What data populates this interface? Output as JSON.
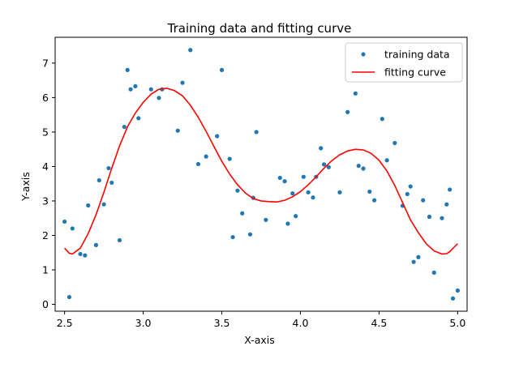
{
  "chart_data": {
    "type": "scatter",
    "title": "Training data and fitting curve",
    "xlabel": "X-axis",
    "ylabel": "Y-axis",
    "xlim": [
      2.44,
      5.06
    ],
    "ylim": [
      -0.2,
      7.75
    ],
    "xticks": [
      2.5,
      3.0,
      3.5,
      4.0,
      4.5,
      5.0
    ],
    "xtick_labels": [
      "2.5",
      "3.0",
      "3.5",
      "4.0",
      "4.5",
      "5.0"
    ],
    "yticks": [
      0,
      1,
      2,
      3,
      4,
      5,
      6,
      7
    ],
    "ytick_labels": [
      "0",
      "1",
      "2",
      "3",
      "4",
      "5",
      "6",
      "7"
    ],
    "grid": false,
    "legend_position": "top-right",
    "series": [
      {
        "name": "training data",
        "kind": "scatter",
        "color": "#1f77b4",
        "points": [
          [
            2.5,
            2.4
          ],
          [
            2.53,
            0.21
          ],
          [
            2.55,
            2.2
          ],
          [
            2.6,
            1.46
          ],
          [
            2.63,
            1.42
          ],
          [
            2.65,
            2.87
          ],
          [
            2.7,
            1.72
          ],
          [
            2.72,
            3.6
          ],
          [
            2.75,
            2.9
          ],
          [
            2.78,
            3.95
          ],
          [
            2.8,
            3.53
          ],
          [
            2.85,
            1.86
          ],
          [
            2.88,
            5.15
          ],
          [
            2.9,
            6.8
          ],
          [
            2.92,
            6.24
          ],
          [
            2.95,
            6.33
          ],
          [
            2.97,
            5.4
          ],
          [
            3.05,
            6.24
          ],
          [
            3.1,
            5.99
          ],
          [
            3.12,
            6.24
          ],
          [
            3.22,
            5.04
          ],
          [
            3.25,
            6.43
          ],
          [
            3.3,
            7.38
          ],
          [
            3.35,
            4.07
          ],
          [
            3.4,
            4.29
          ],
          [
            3.47,
            4.88
          ],
          [
            3.5,
            6.8
          ],
          [
            3.55,
            4.22
          ],
          [
            3.57,
            1.95
          ],
          [
            3.6,
            3.3
          ],
          [
            3.63,
            2.64
          ],
          [
            3.68,
            2.03
          ],
          [
            3.7,
            3.09
          ],
          [
            3.72,
            5.0
          ],
          [
            3.78,
            2.45
          ],
          [
            3.87,
            3.67
          ],
          [
            3.9,
            3.57
          ],
          [
            3.92,
            2.34
          ],
          [
            3.95,
            3.22
          ],
          [
            3.97,
            2.56
          ],
          [
            4.02,
            3.7
          ],
          [
            4.05,
            3.25
          ],
          [
            4.08,
            3.1
          ],
          [
            4.1,
            3.7
          ],
          [
            4.13,
            4.53
          ],
          [
            4.15,
            4.06
          ],
          [
            4.18,
            3.98
          ],
          [
            4.25,
            3.25
          ],
          [
            4.3,
            5.58
          ],
          [
            4.35,
            6.12
          ],
          [
            4.37,
            4.02
          ],
          [
            4.4,
            3.94
          ],
          [
            4.44,
            3.27
          ],
          [
            4.47,
            3.02
          ],
          [
            4.52,
            5.38
          ],
          [
            4.55,
            4.18
          ],
          [
            4.6,
            4.68
          ],
          [
            4.65,
            2.86
          ],
          [
            4.68,
            3.2
          ],
          [
            4.7,
            3.42
          ],
          [
            4.72,
            1.23
          ],
          [
            4.75,
            1.37
          ],
          [
            4.78,
            3.02
          ],
          [
            4.82,
            2.54
          ],
          [
            4.85,
            0.92
          ],
          [
            4.9,
            2.5
          ],
          [
            4.93,
            2.9
          ],
          [
            4.95,
            3.33
          ],
          [
            4.97,
            0.17
          ],
          [
            5.0,
            0.4
          ]
        ]
      },
      {
        "name": "fitting curve",
        "kind": "line",
        "color": "#ff0000",
        "points": [
          [
            2.5,
            1.63
          ],
          [
            2.53,
            1.48
          ],
          [
            2.55,
            1.46
          ],
          [
            2.6,
            1.63
          ],
          [
            2.65,
            2.05
          ],
          [
            2.7,
            2.6
          ],
          [
            2.75,
            3.25
          ],
          [
            2.8,
            3.95
          ],
          [
            2.85,
            4.6
          ],
          [
            2.9,
            5.15
          ],
          [
            2.95,
            5.55
          ],
          [
            3.0,
            5.86
          ],
          [
            3.05,
            6.1
          ],
          [
            3.1,
            6.24
          ],
          [
            3.15,
            6.27
          ],
          [
            3.2,
            6.2
          ],
          [
            3.25,
            6.05
          ],
          [
            3.3,
            5.78
          ],
          [
            3.35,
            5.43
          ],
          [
            3.4,
            5.02
          ],
          [
            3.45,
            4.58
          ],
          [
            3.5,
            4.15
          ],
          [
            3.55,
            3.78
          ],
          [
            3.6,
            3.47
          ],
          [
            3.65,
            3.23
          ],
          [
            3.7,
            3.07
          ],
          [
            3.75,
            3.0
          ],
          [
            3.8,
            2.98
          ],
          [
            3.85,
            2.97
          ],
          [
            3.9,
            3.02
          ],
          [
            3.95,
            3.12
          ],
          [
            4.0,
            3.27
          ],
          [
            4.05,
            3.47
          ],
          [
            4.1,
            3.7
          ],
          [
            4.15,
            3.95
          ],
          [
            4.2,
            4.17
          ],
          [
            4.25,
            4.34
          ],
          [
            4.3,
            4.45
          ],
          [
            4.35,
            4.5
          ],
          [
            4.4,
            4.48
          ],
          [
            4.45,
            4.38
          ],
          [
            4.5,
            4.18
          ],
          [
            4.55,
            3.87
          ],
          [
            4.6,
            3.45
          ],
          [
            4.65,
            2.95
          ],
          [
            4.7,
            2.45
          ],
          [
            4.75,
            2.08
          ],
          [
            4.8,
            1.76
          ],
          [
            4.85,
            1.55
          ],
          [
            4.9,
            1.46
          ],
          [
            4.93,
            1.47
          ],
          [
            4.95,
            1.53
          ],
          [
            4.98,
            1.67
          ],
          [
            5.0,
            1.76
          ]
        ]
      }
    ]
  }
}
